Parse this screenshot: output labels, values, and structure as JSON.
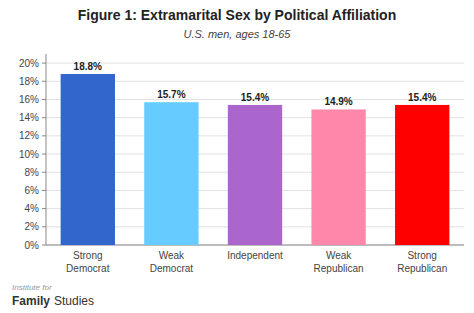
{
  "chart_data": {
    "type": "bar",
    "title": "Figure 1: Extramarital Sex by Political Affiliation",
    "subtitle": "U.S. men, ages 18-65",
    "categories": [
      "Strong\nDemocrat",
      "Weak\nDemocrat",
      "Independent",
      "Weak\nRepublican",
      "Strong\nRepublican"
    ],
    "values": [
      18.8,
      15.7,
      15.4,
      14.9,
      15.4
    ],
    "value_labels": [
      "18.8%",
      "15.7%",
      "15.4%",
      "14.9%",
      "15.4%"
    ],
    "colors": [
      "#3366cc",
      "#66ccff",
      "#aa66cc",
      "#ff88aa",
      "#ff0000"
    ],
    "ylim": [
      0,
      21
    ],
    "yticks": [
      {
        "value": 0,
        "label": "0%"
      },
      {
        "value": 2,
        "label": "2%"
      },
      {
        "value": 4,
        "label": "4%"
      },
      {
        "value": 6,
        "label": "6%"
      },
      {
        "value": 8,
        "label": "8%"
      },
      {
        "value": 10,
        "label": "10%"
      },
      {
        "value": 12,
        "label": "12%"
      },
      {
        "value": 14,
        "label": "14%"
      },
      {
        "value": 16,
        "label": "16%"
      },
      {
        "value": 18,
        "label": "18%"
      },
      {
        "value": 20,
        "label": "20%"
      }
    ],
    "grid": true,
    "data_labels": true,
    "annotations": [
      "Institute for",
      "Family",
      "Studies"
    ]
  }
}
